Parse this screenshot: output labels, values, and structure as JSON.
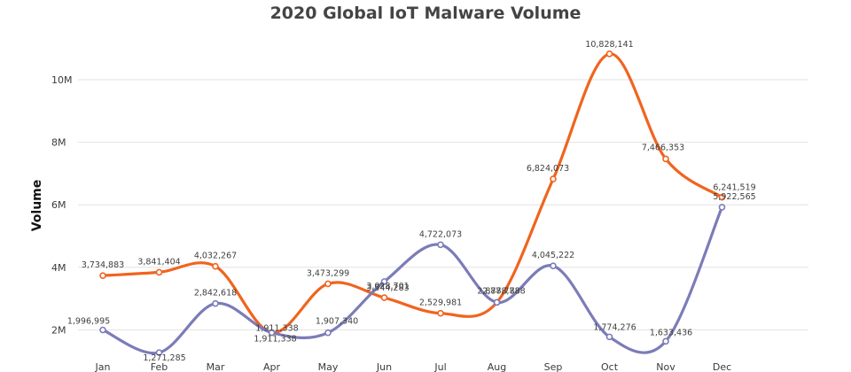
{
  "chart_data": {
    "type": "line",
    "title": "2020 Global IoT Malware Volume",
    "xlabel": "",
    "ylabel": "Volume",
    "categories": [
      "Jan",
      "Feb",
      "Mar",
      "Apr",
      "May",
      "Jun",
      "Jul",
      "Aug",
      "Sep",
      "Oct",
      "Nov",
      "Dec"
    ],
    "ylim": [
      0,
      11500000
    ],
    "yticks": [
      2000000,
      4000000,
      6000000,
      8000000,
      10000000
    ],
    "yticklabels": [
      "2M",
      "4M",
      "6M",
      "8M",
      "10M"
    ],
    "grid": true,
    "series": [
      {
        "values": [
          3734883,
          3841404,
          4032267,
          1911338,
          3473299,
          3028701,
          2529981,
          2878788,
          6824073,
          10828141,
          7466353,
          6241519
        ],
        "labels": [
          "3,734,883",
          "3,841,404",
          "4,032,267",
          "1,911,338",
          "3,473,299",
          "3,028,701",
          "2,529,981",
          "2,878,788",
          "6,824,073",
          "10,828,141",
          "7,466,353",
          "6,241,519"
        ],
        "color": "#f0641e"
      },
      {
        "values": [
          1996995,
          1271285,
          2842618,
          1911338,
          1907340,
          3544283,
          4722073,
          2878788,
          4045222,
          1774276,
          1633436,
          5922565
        ],
        "labels": [
          "1,996,995",
          "1,271,285",
          "2,842,618",
          "1,911,338",
          "1,907,340",
          "3,544,283",
          "4,722,073",
          "2,878,788",
          "4,045,222",
          "1,774,276",
          "1,633,436",
          "5,922,565"
        ],
        "color": "#7b7cb8"
      }
    ]
  }
}
